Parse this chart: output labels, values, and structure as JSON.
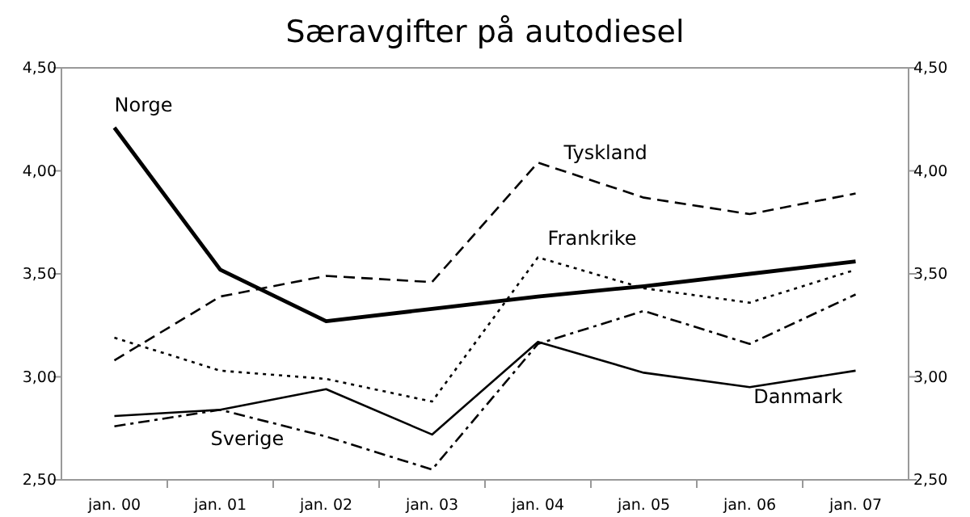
{
  "chart_data": {
    "type": "line",
    "title": "Særavgifter på autodiesel",
    "categories": [
      "jan. 00",
      "jan. 01",
      "jan. 02",
      "jan. 03",
      "jan. 04",
      "jan. 05",
      "jan. 06",
      "jan. 07"
    ],
    "ylim": [
      2.5,
      4.5
    ],
    "yticks": [
      {
        "value": 2.5,
        "label": "2,50"
      },
      {
        "value": 3,
        "label": "3,00"
      },
      {
        "value": 3.5,
        "label": "3,50"
      },
      {
        "value": 4,
        "label": "4,00"
      },
      {
        "value": 4.5,
        "label": "4,50"
      }
    ],
    "y2lim": [
      2.5,
      4.5
    ],
    "y2ticks": [
      {
        "value": 2.5,
        "label": "2,50"
      },
      {
        "value": 3,
        "label": "3,00"
      },
      {
        "value": 3.5,
        "label": "3,50"
      },
      {
        "value": 4,
        "label": "4,00"
      },
      {
        "value": 4.5,
        "label": "4,50"
      }
    ],
    "grid": false,
    "legend": false,
    "marker": "none",
    "series": [
      {
        "name": "Norge",
        "color": "#000000",
        "line_style": "solid",
        "values": [
          4.21,
          3.52,
          3.27,
          3.33,
          3.39,
          3.44,
          3.5,
          3.56
        ]
      },
      {
        "name": "Tyskland",
        "color": "#000000",
        "line_style": "dashed",
        "values": [
          3.08,
          3.39,
          3.49,
          3.46,
          4.04,
          3.87,
          3.79,
          3.89
        ]
      },
      {
        "name": "Frankrike",
        "color": "#000000",
        "line_style": "dotted",
        "values": [
          3.19,
          3.03,
          2.99,
          2.88,
          3.58,
          3.43,
          3.36,
          3.52
        ]
      },
      {
        "name": "Danmark",
        "color": "#000000",
        "line_style": "solid",
        "values": [
          2.81,
          2.84,
          2.94,
          2.72,
          3.17,
          3.02,
          2.95,
          3.03
        ]
      },
      {
        "name": "Sverige",
        "color": "#000000",
        "line_style": "dashdot",
        "values": [
          2.76,
          2.84,
          2.71,
          2.55,
          3.16,
          3.32,
          3.16,
          3.4
        ]
      }
    ]
  }
}
